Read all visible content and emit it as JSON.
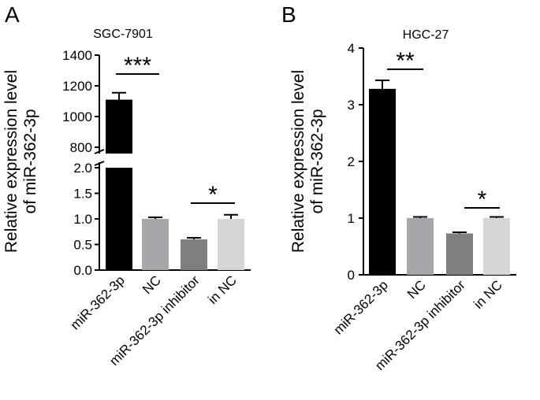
{
  "chart_data": [
    {
      "panel_label": "A",
      "type": "bar",
      "title": "SGC-7901",
      "ylabel_line1": "Relative expression level",
      "ylabel_line2": "of miR-362-3p",
      "categories": [
        "miR-362-3p",
        "NC",
        "miR-362-3p inhibitor",
        "in NC"
      ],
      "values": [
        1110,
        1.0,
        0.6,
        1.0
      ],
      "errors": [
        45,
        0.03,
        0.03,
        0.08
      ],
      "colors": [
        "#000000",
        "#a6a6ab",
        "#7f7f7f",
        "#d6d6d6"
      ],
      "axis_break": true,
      "lower_ylim": [
        0,
        2.0
      ],
      "lower_ticks": [
        0.0,
        0.5,
        1.0,
        1.5,
        2.0
      ],
      "lower_tick_labels": [
        "0.0",
        "0.5",
        "1.0",
        "1.5",
        "2.0"
      ],
      "upper_ylim": [
        800,
        1400
      ],
      "upper_ticks": [
        800,
        1000,
        1200,
        1400
      ],
      "upper_tick_labels": [
        "800",
        "1000",
        "1200",
        "1400"
      ],
      "significance": [
        {
          "from": 0,
          "to": 1,
          "label": "***"
        },
        {
          "from": 2,
          "to": 3,
          "label": "*"
        }
      ]
    },
    {
      "panel_label": "B",
      "type": "bar",
      "title": "HGC-27",
      "ylabel_line1": "Relative expression level",
      "ylabel_line2": "of miR-362-3p",
      "categories": [
        "miR-362-3p",
        "NC",
        "miR-362-3p inhibitor",
        "in NC"
      ],
      "values": [
        3.28,
        1.0,
        0.73,
        1.0
      ],
      "errors": [
        0.15,
        0.02,
        0.02,
        0.02
      ],
      "colors": [
        "#000000",
        "#a6a6ab",
        "#7f7f7f",
        "#d6d6d6"
      ],
      "axis_break": false,
      "ylim": [
        0,
        4
      ],
      "ticks": [
        0,
        1,
        2,
        3,
        4
      ],
      "tick_labels": [
        "0",
        "1",
        "2",
        "3",
        "4"
      ],
      "significance": [
        {
          "from": 0,
          "to": 1,
          "label": "**"
        },
        {
          "from": 2,
          "to": 3,
          "label": "*"
        }
      ]
    }
  ]
}
